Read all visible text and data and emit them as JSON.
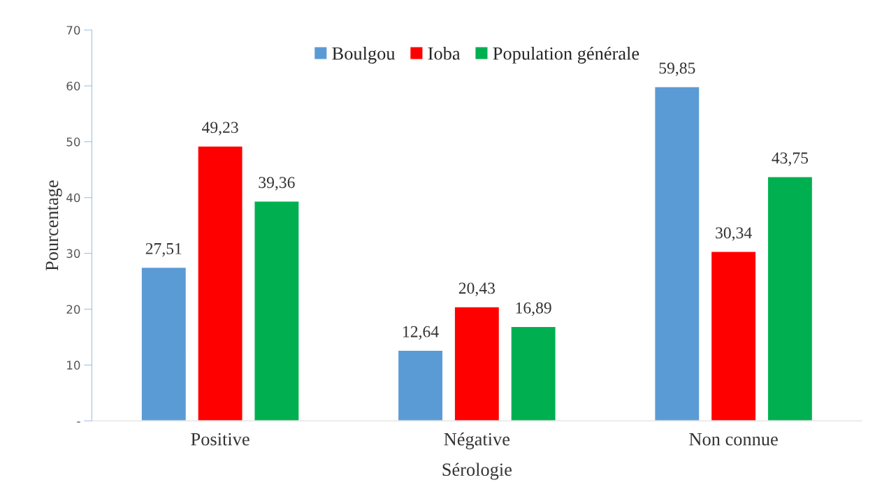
{
  "chart_data": {
    "type": "bar",
    "xlabel": "Sérologie",
    "ylabel": "Pourcentage",
    "categories": [
      "Positive",
      "Négative",
      "Non connue"
    ],
    "series": [
      {
        "name": "Boulgou",
        "color": "#5b9bd5",
        "values": [
          27.51,
          12.64,
          59.85
        ],
        "value_labels": [
          "27,51",
          "12,64",
          "59,85"
        ]
      },
      {
        "name": "Ioba",
        "color": "#ff0000",
        "values": [
          49.23,
          20.43,
          30.34
        ],
        "value_labels": [
          "49,23",
          "20,43",
          "30,34"
        ]
      },
      {
        "name": "Population générale",
        "color": "#00b050",
        "values": [
          39.36,
          16.89,
          43.75
        ],
        "value_labels": [
          "39,36",
          "16,89",
          "43,75"
        ]
      }
    ],
    "ylim": [
      0,
      70
    ],
    "yticks": [
      {
        "value": 0,
        "label": "-"
      },
      10,
      20,
      30,
      40,
      50,
      60,
      70
    ],
    "grid": false,
    "legend": "top"
  }
}
